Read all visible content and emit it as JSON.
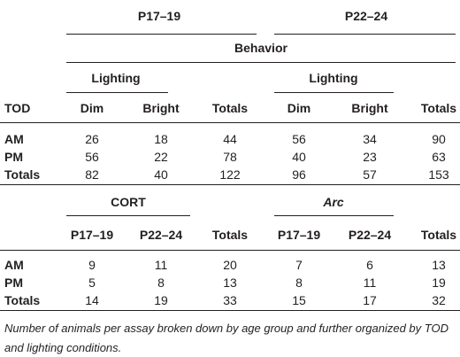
{
  "table1": {
    "group_headers": [
      "P17–19",
      "P22–24"
    ],
    "spanner": "Behavior",
    "subgroup_headers": [
      "Lighting",
      "Lighting"
    ],
    "columns": [
      "TOD",
      "Dim",
      "Bright",
      "Totals",
      "Dim",
      "Bright",
      "Totals"
    ],
    "rows": [
      [
        "AM",
        26,
        18,
        44,
        56,
        34,
        90
      ],
      [
        "PM",
        56,
        22,
        78,
        40,
        23,
        63
      ],
      [
        "Totals",
        82,
        40,
        122,
        96,
        57,
        153
      ]
    ]
  },
  "table2": {
    "group_headers": [
      "CORT",
      "Arc"
    ],
    "columns": [
      "P17–19",
      "P22–24",
      "Totals",
      "P17–19",
      "P22–24",
      "Totals"
    ],
    "rows": [
      [
        "AM",
        9,
        11,
        20,
        7,
        6,
        13
      ],
      [
        "PM",
        5,
        8,
        13,
        8,
        11,
        19
      ],
      [
        "Totals",
        14,
        19,
        33,
        15,
        17,
        32
      ]
    ]
  },
  "caption": "Number of animals per assay broken down by age group and further organized by TOD and lighting conditions."
}
